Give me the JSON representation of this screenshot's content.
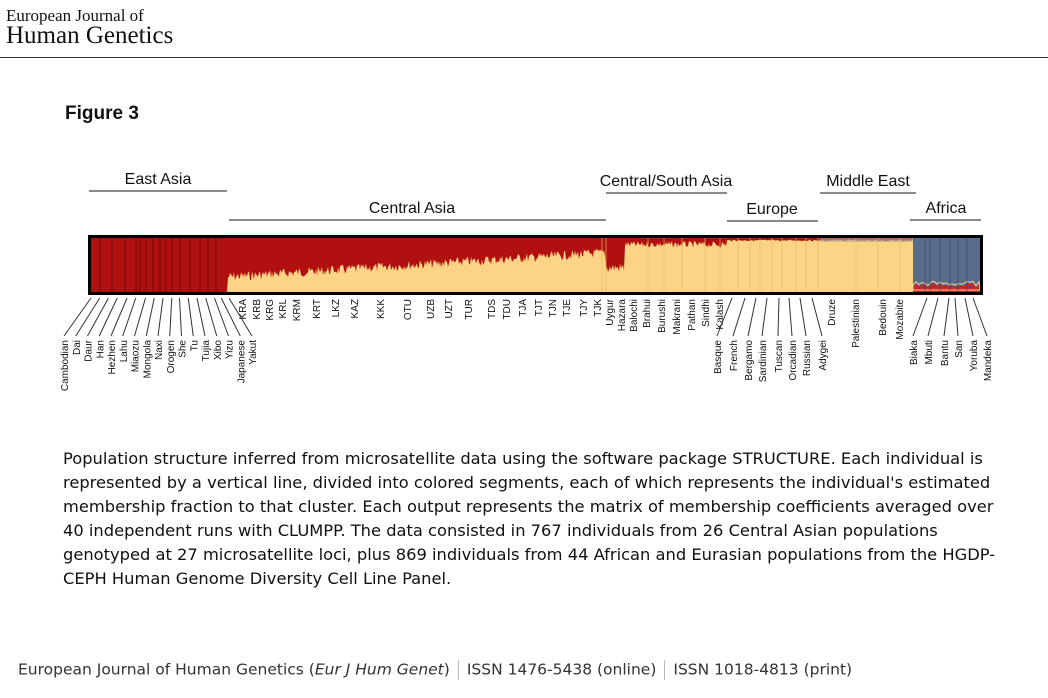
{
  "header": {
    "journal_line1": "European Journal of",
    "journal_line2": "Human Genetics"
  },
  "figure": {
    "title": "Figure 3",
    "regions": [
      "East Asia",
      "Central Asia",
      "Central/South Asia",
      "Europe",
      "Middle East",
      "Africa"
    ],
    "populations_upper": [
      "KRA",
      "KRB",
      "KRG",
      "KRL",
      "KRM",
      "KRT",
      "LKZ",
      "KAZ",
      "KKK",
      "OTU",
      "UZB",
      "UZT",
      "TUR",
      "TDS",
      "TDU",
      "TJA",
      "TJT",
      "TJN",
      "TJE",
      "TJY",
      "TJK",
      "Uygur",
      "Hazara",
      "Balochi",
      "Brahui",
      "Burushi",
      "Makrani",
      "Pathan",
      "Sindhi",
      "Kalash",
      "Druze",
      "Palestinian",
      "Bedouin",
      "Mozabite"
    ],
    "populations_lower": [
      "Cambodian",
      "Dai",
      "Daur",
      "Han",
      "Hezhen",
      "Lahu",
      "Miaozu",
      "Mongola",
      "Naxi",
      "Orogen",
      "She",
      "Tu",
      "Tujia",
      "Xibo",
      "Yizu",
      "Japanese",
      "Yakut",
      "Basque",
      "French",
      "Bergamo",
      "Sardinian",
      "Tuscan",
      "Orcadian",
      "Russian",
      "Adygei",
      "Biaka",
      "Mbuti",
      "Bantu",
      "San",
      "Yoruba",
      "Mandeka"
    ],
    "colors": {
      "cluster_east": "#b01010",
      "cluster_west": "#fdd386",
      "cluster_africa": "#5a6c8e",
      "frame": "#000000"
    }
  },
  "caption": "Population structure inferred from microsatellite data using the software package STRUCTURE. Each individual is represented by a vertical line, divided into colored segments, each of which represents the individual's estimated membership fraction to that cluster. Each output represents the matrix of membership coefficients averaged over 40 independent runs with CLUMPP. The data consisted in 767 individuals from 26 Central Asian populations genotyped at 27 microsatellite loci, plus 869 individuals from 44 African and Eurasian populations from the HGDP-CEPH Human Genome Diversity Cell Line Panel.",
  "footer": {
    "journal": "European Journal of Human Genetics (",
    "abbrev": "Eur J Hum Genet",
    "close": ")",
    "issn_online": "ISSN 1476-5438 (online)",
    "issn_print": "ISSN 1018-4813 (print)"
  }
}
